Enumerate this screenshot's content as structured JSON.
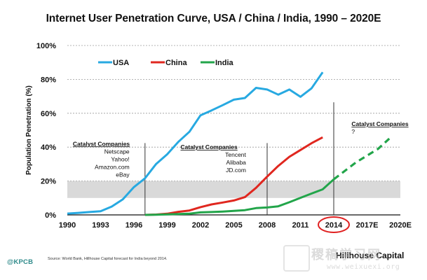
{
  "title": "Internet User Penetration Curve, USA / China / India, 1990 – 2020E",
  "chart_data": {
    "type": "line",
    "title": "Internet User Penetration Curve, USA / China / India, 1990 – 2020E",
    "ylabel": "Population Penetration (%)",
    "xlabel": "",
    "xlim": [
      1990,
      2020
    ],
    "ylim": [
      0,
      100
    ],
    "x_ticks": [
      1990,
      1993,
      1996,
      1999,
      2002,
      2005,
      2008,
      2011,
      2014,
      2017,
      2020
    ],
    "x_tick_labels": [
      "1990",
      "1993",
      "1996",
      "1999",
      "2002",
      "2005",
      "2008",
      "2011",
      "2014",
      "2017E",
      "2020E"
    ],
    "y_ticks": [
      0,
      20,
      40,
      60,
      80,
      100
    ],
    "y_tick_labels": [
      "0%",
      "20%",
      "40%",
      "60%",
      "80%",
      "100%"
    ],
    "grid": "horizontal-dashed",
    "legend_position": "top-left",
    "highlight_band": [
      10,
      20
    ],
    "highlight_band_color": "#d9d9d9",
    "highlighted_tick": "2014",
    "highlight_circle_color": "#e02020",
    "series": [
      {
        "name": "USA",
        "color": "#27a9e1",
        "style": "solid",
        "points": [
          [
            1990,
            0.8
          ],
          [
            1991,
            1.2
          ],
          [
            1992,
            1.7
          ],
          [
            1993,
            2.2
          ],
          [
            1994,
            4.9
          ],
          [
            1995,
            9.2
          ],
          [
            1996,
            16.4
          ],
          [
            1997,
            21.6
          ],
          [
            1998,
            30.1
          ],
          [
            1999,
            35.8
          ],
          [
            2000,
            43.1
          ],
          [
            2001,
            49.1
          ],
          [
            2002,
            58.8
          ],
          [
            2003,
            61.7
          ],
          [
            2004,
            64.8
          ],
          [
            2005,
            68.0
          ],
          [
            2006,
            69.0
          ],
          [
            2007,
            75.0
          ],
          [
            2008,
            74.0
          ],
          [
            2009,
            71.0
          ],
          [
            2010,
            74.0
          ],
          [
            2011,
            69.7
          ],
          [
            2012,
            74.7
          ],
          [
            2013,
            84.2
          ]
        ]
      },
      {
        "name": "China",
        "color": "#e0271f",
        "style": "solid",
        "points": [
          [
            1997,
            0.0
          ],
          [
            1998,
            0.2
          ],
          [
            1999,
            0.7
          ],
          [
            2000,
            1.8
          ],
          [
            2001,
            2.6
          ],
          [
            2002,
            4.6
          ],
          [
            2003,
            6.2
          ],
          [
            2004,
            7.3
          ],
          [
            2005,
            8.5
          ],
          [
            2006,
            10.5
          ],
          [
            2007,
            16.0
          ],
          [
            2008,
            22.6
          ],
          [
            2009,
            28.9
          ],
          [
            2010,
            34.3
          ],
          [
            2011,
            38.3
          ],
          [
            2012,
            42.3
          ],
          [
            2013,
            45.8
          ]
        ]
      },
      {
        "name": "India",
        "color": "#22a54a",
        "style": "solid",
        "points": [
          [
            1997,
            0.0
          ],
          [
            1998,
            0.1
          ],
          [
            1999,
            0.3
          ],
          [
            2000,
            0.5
          ],
          [
            2001,
            0.7
          ],
          [
            2002,
            1.5
          ],
          [
            2003,
            1.7
          ],
          [
            2004,
            2.0
          ],
          [
            2005,
            2.4
          ],
          [
            2006,
            2.8
          ],
          [
            2007,
            4.0
          ],
          [
            2008,
            4.4
          ],
          [
            2009,
            5.1
          ],
          [
            2010,
            7.5
          ],
          [
            2011,
            10.1
          ],
          [
            2012,
            12.6
          ],
          [
            2013,
            15.1
          ],
          [
            2014,
            21.0
          ]
        ]
      },
      {
        "name": "India",
        "color": "#22a54a",
        "style": "dashed",
        "points": [
          [
            2014,
            21.0
          ],
          [
            2016,
            31.0
          ],
          [
            2018,
            39.0
          ],
          [
            2019,
            45.0
          ]
        ]
      }
    ],
    "annotations": [
      {
        "heading": "Catalyst Companies",
        "items": [
          "Netscape",
          "Yahoo!",
          "Amazon.com",
          "eBay"
        ],
        "marker_year": 1997
      },
      {
        "heading": "Catalyst Companies",
        "items": [
          "Tencent",
          "Alibaba",
          "JD.com"
        ],
        "marker_year": 2008
      },
      {
        "heading": "Catalyst Companies",
        "items": [
          "?"
        ],
        "marker_year": 2014
      }
    ]
  },
  "footer": {
    "logo": "@KPCB",
    "source": "Source: World Bank, Hillhouse Capital forecast for India beyond 2014.",
    "brand": "Hillhouse Capital",
    "watermark_top": "稷稿学习网",
    "watermark_bottom": "www.weixuexi.org"
  }
}
